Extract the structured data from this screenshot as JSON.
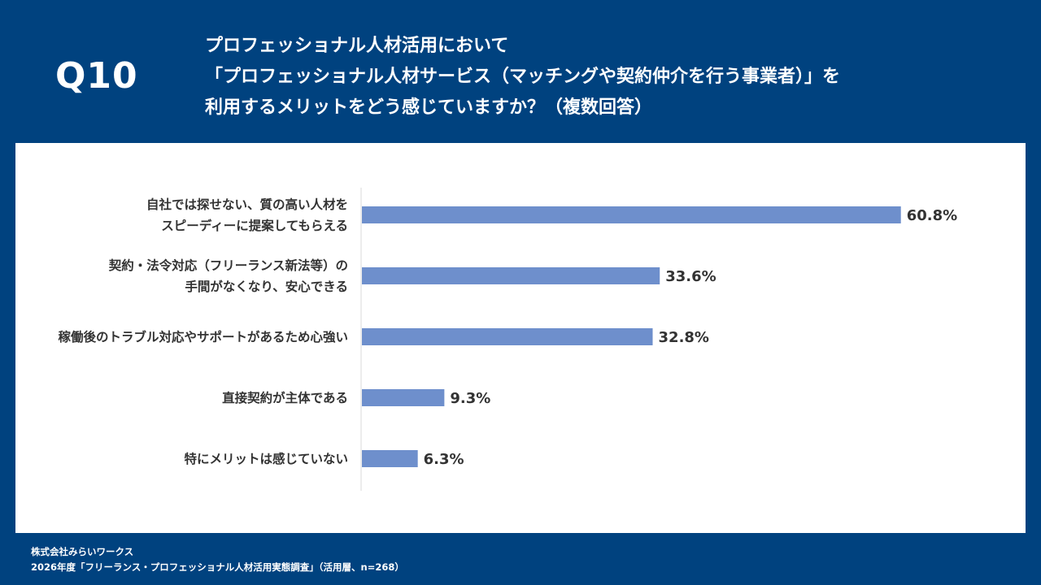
{
  "header": {
    "question_number": "Q10",
    "title_lines": [
      "プロフェッショナル人材活用において",
      "「プロフェッショナル人材サービス（マッチングや契約仲介を行う事業者）」を",
      "利用するメリットをどう感じていますか？（複数回答）"
    ]
  },
  "chart_data": {
    "type": "bar",
    "orientation": "horizontal",
    "categories": [
      [
        "自社では探せない、質の高い人材を",
        "スピーディーに提案してもらえる"
      ],
      [
        "契約・法令対応（フリーランス新法等）の",
        "手間がなくなり、安心できる"
      ],
      [
        "稼働後のトラブル対応やサポートがあるため心強い"
      ],
      [
        "直接契約が主体である"
      ],
      [
        "特にメリットは感じていない"
      ]
    ],
    "values": [
      60.8,
      33.6,
      32.8,
      9.3,
      6.3
    ],
    "value_labels": [
      "60.8%",
      "33.6%",
      "32.8%",
      "9.3%",
      "6.3%"
    ],
    "unit": "%",
    "xlim": [
      0,
      100
    ],
    "bar_color": "#6e8fcc",
    "title": "",
    "xlabel": "",
    "ylabel": ""
  },
  "footer": {
    "company": "株式会社みらいワークス",
    "source": "2026年度「フリーランス・プロフェッショナル人材活用実態調査」（活用層、n=268）"
  },
  "colors": {
    "background": "#00427f",
    "panel": "#ffffff",
    "bar": "#6e8fcc",
    "text_dark": "#333333",
    "axis": "#d9d9d9"
  }
}
